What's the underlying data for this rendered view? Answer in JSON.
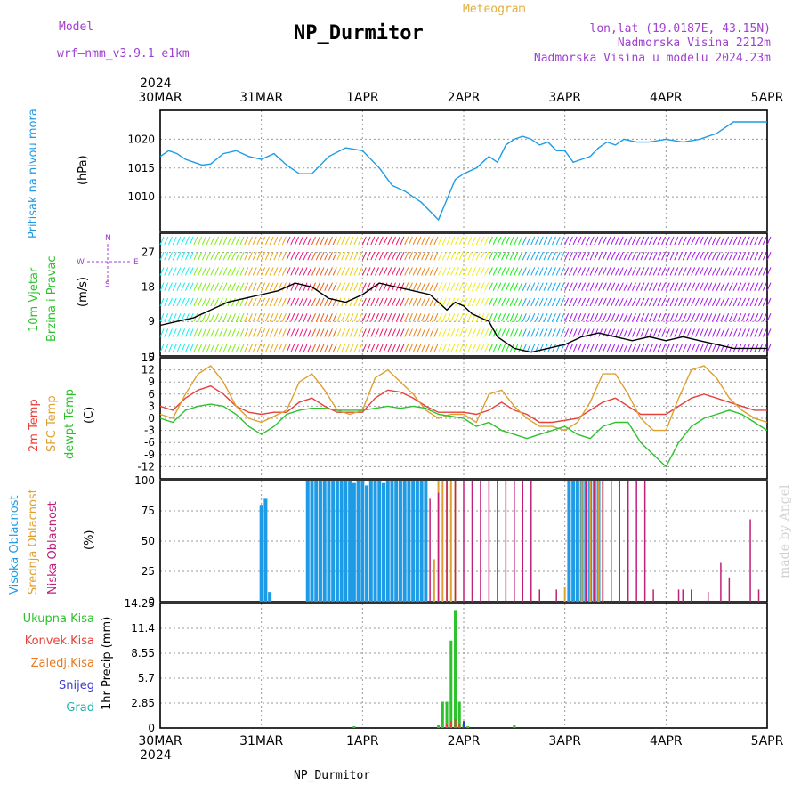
{
  "header": {
    "model_label": "Model",
    "model_name": "wrf—nmm_v3.9.1  e1km",
    "station_title": "NP_Durmitor",
    "meteogram_label": "Meteogram",
    "coords": "lon,lat (19.0187E, 43.15N)",
    "elevation": "Nadmorska Visina 2212m",
    "model_elevation": "Nadmorska Visina u modelu 2024.23m",
    "year_top": "2024",
    "year_bottom": "2024",
    "footer_station": "NP_Durmitor",
    "watermark": "made by Angel"
  },
  "colors": {
    "pressure": "#1e9be6",
    "temp2m": "#e8403a",
    "sfc": "#e0a030",
    "dewpt": "#2cc22c",
    "high_cloud": "#1e9be6",
    "mid_cloud": "#e0a030",
    "low_cloud": "#c0207a",
    "precip_total": "#2cc22c",
    "precip_conv": "#e8403a",
    "snow": "#3a3ad0",
    "header_purple": "#a040d0",
    "header_gold": "#e0b040"
  },
  "panel_labels": {
    "pressure": [
      "Pritisak na nivou mora",
      "(hPa)"
    ],
    "wind": [
      "10m Vjetar",
      "Brzina i Pravac",
      "(m/s)"
    ],
    "wind_compass": [
      "N",
      "S",
      "W",
      "E"
    ],
    "temp": [
      "2m Temp",
      "SFC Temp",
      "dewpt Temp",
      "(C)"
    ],
    "cloud": [
      "Visoka Oblacnost",
      "Srednja Oblacnost",
      "Niska Oblacnost",
      "(%)"
    ],
    "precip": [
      "Ukupna Kisa",
      "Konvek.Kisa",
      "Zaledj.Kisa",
      "Snijeg",
      "Grad",
      "1hr Precip (mm)"
    ]
  },
  "chart_data": [
    {
      "type": "line",
      "name_ref": "pressure",
      "x_labels": [
        "30MAR",
        "31MAR",
        "1APR",
        "2APR",
        "3APR",
        "4APR",
        "5APR"
      ],
      "yticks": [
        "1010",
        "1015",
        "1020"
      ],
      "ylim": [
        1004,
        1025
      ],
      "series": [
        {
          "color_ref": "pressure",
          "x": [
            0,
            2,
            4,
            6,
            8,
            10,
            12,
            15,
            18,
            21,
            24,
            27,
            30,
            33,
            36,
            40,
            44,
            48,
            52,
            55,
            58,
            62,
            66,
            70,
            72,
            75,
            78,
            80,
            82,
            84,
            86,
            88,
            90,
            92,
            94,
            96,
            98,
            100,
            102,
            104,
            106,
            108,
            110,
            113,
            116,
            120,
            124,
            128,
            132,
            136,
            140,
            144
          ],
          "values": [
            1017,
            1018,
            1017.5,
            1016.5,
            1016,
            1015.5,
            1015.7,
            1017.5,
            1018,
            1017,
            1016.5,
            1017.5,
            1015.5,
            1014,
            1014,
            1017,
            1018.5,
            1018,
            1015,
            1012,
            1011,
            1009,
            1006,
            1013,
            1014,
            1015,
            1017,
            1016,
            1019,
            1020,
            1020.5,
            1020,
            1019,
            1019.5,
            1018,
            1018,
            1016,
            1016.5,
            1017,
            1018.5,
            1019.5,
            1019,
            1020,
            1019.5,
            1019.5,
            1020,
            1019.5,
            1020,
            1021,
            1023,
            1023,
            1023
          ]
        }
      ]
    },
    {
      "type": "line",
      "name_ref": "wind",
      "yticks": [
        "0",
        "9",
        "18",
        "27"
      ],
      "ylim": [
        0,
        32
      ],
      "series": [
        {
          "color": "#000000",
          "x": [
            0,
            4,
            8,
            12,
            16,
            20,
            24,
            28,
            32,
            36,
            40,
            44,
            48,
            52,
            56,
            60,
            64,
            66,
            68,
            70,
            72,
            74,
            76,
            78,
            80,
            84,
            88,
            92,
            96,
            100,
            104,
            108,
            112,
            116,
            120,
            124,
            128,
            132,
            136,
            140,
            144
          ],
          "values": [
            8,
            9,
            10,
            12,
            14,
            15,
            16,
            17,
            19,
            18,
            15,
            14,
            16,
            19,
            18,
            17,
            16,
            14,
            12,
            14,
            13,
            11,
            10,
            9,
            5,
            2,
            1,
            2,
            3,
            5,
            6,
            5,
            4,
            5,
            4,
            5,
            4,
            3,
            2,
            2,
            2
          ]
        }
      ]
    },
    {
      "type": "line",
      "name_ref": "temp",
      "yticks": [
        "-12",
        "-9",
        "-6",
        "-3",
        "0",
        "3",
        "6",
        "9",
        "12",
        "15"
      ],
      "ylim": [
        -15,
        15
      ],
      "series": [
        {
          "color_ref": "temp2m",
          "x": [
            0,
            3,
            6,
            9,
            12,
            15,
            18,
            21,
            24,
            27,
            30,
            33,
            36,
            39,
            42,
            45,
            48,
            51,
            54,
            57,
            60,
            63,
            66,
            69,
            72,
            75,
            78,
            81,
            84,
            87,
            90,
            93,
            96,
            99,
            102,
            105,
            108,
            111,
            114,
            117,
            120,
            123,
            126,
            129,
            132,
            135,
            138,
            141,
            144
          ],
          "values": [
            3,
            2,
            5,
            7,
            8,
            6,
            3,
            1.5,
            1,
            1.5,
            1.5,
            4,
            5,
            3,
            1.5,
            1.5,
            1.5,
            5,
            7,
            6.5,
            5,
            3,
            1.5,
            1.5,
            1.5,
            1,
            2,
            4,
            2,
            1,
            -1,
            -1,
            -0.5,
            0,
            2,
            4,
            5,
            3,
            1,
            1,
            1,
            3,
            5,
            6,
            5,
            4,
            3,
            2,
            2
          ]
        },
        {
          "color_ref": "sfc",
          "x": [
            0,
            3,
            6,
            9,
            12,
            15,
            18,
            21,
            24,
            27,
            30,
            33,
            36,
            39,
            42,
            45,
            48,
            51,
            54,
            57,
            60,
            63,
            66,
            69,
            72,
            75,
            78,
            81,
            84,
            87,
            90,
            93,
            96,
            99,
            102,
            105,
            108,
            111,
            114,
            117,
            120,
            123,
            126,
            129,
            132,
            135,
            138,
            141,
            144
          ],
          "values": [
            1,
            0,
            6,
            11,
            13,
            9,
            3,
            0,
            -1,
            0.5,
            2,
            9,
            11,
            7,
            2,
            1,
            2,
            10,
            12,
            9,
            6,
            2,
            0,
            1,
            1,
            -1,
            6,
            7,
            3,
            0,
            -2,
            -2,
            -3,
            -1,
            4,
            11,
            11,
            6,
            0,
            -3,
            -3,
            5,
            12,
            13,
            10,
            5,
            2,
            0,
            -1
          ]
        },
        {
          "color_ref": "dewpt",
          "x": [
            0,
            3,
            6,
            9,
            12,
            15,
            18,
            21,
            24,
            27,
            30,
            33,
            36,
            39,
            42,
            45,
            48,
            51,
            54,
            57,
            60,
            63,
            66,
            69,
            72,
            75,
            78,
            81,
            84,
            87,
            90,
            93,
            96,
            99,
            102,
            105,
            108,
            111,
            114,
            117,
            120,
            123,
            126,
            129,
            132,
            135,
            138,
            141,
            144
          ],
          "values": [
            0,
            -1,
            2,
            3,
            3.5,
            3,
            1,
            -2,
            -4,
            -2,
            1,
            2,
            2.5,
            2.5,
            2,
            2,
            2,
            2.5,
            3,
            2.5,
            3,
            2.5,
            1,
            0.5,
            0,
            -2,
            -1,
            -3,
            -4,
            -5,
            -4,
            -3,
            -2,
            -4,
            -5,
            -2,
            -1,
            -1,
            -6,
            -9,
            -12,
            -6,
            -2,
            0,
            1,
            2,
            1,
            -1,
            -3
          ]
        }
      ]
    },
    {
      "type": "bar",
      "name_ref": "cloud",
      "yticks": [
        "0",
        "25",
        "50",
        "75",
        "100"
      ],
      "ylim": [
        0,
        100
      ],
      "high_cloud": {
        "x": [
          24,
          25,
          26,
          35,
          36,
          37,
          38,
          39,
          40,
          41,
          42,
          43,
          44,
          45,
          46,
          47,
          48,
          49,
          50,
          51,
          52,
          53,
          54,
          55,
          56,
          57,
          58,
          59,
          60,
          61,
          62,
          63,
          97,
          98,
          99,
          100,
          101,
          102,
          103,
          104
        ],
        "values": [
          80,
          85,
          8,
          100,
          100,
          100,
          100,
          100,
          100,
          100,
          100,
          100,
          100,
          100,
          98,
          100,
          100,
          96,
          100,
          100,
          100,
          98,
          100,
          100,
          100,
          100,
          100,
          100,
          100,
          100,
          100,
          100,
          100,
          100,
          100,
          100,
          100,
          100,
          100,
          100
        ]
      },
      "mid_cloud": {
        "x": [
          65,
          66,
          67,
          68,
          69,
          70,
          96,
          100,
          101,
          102,
          103,
          104,
          105
        ],
        "values": [
          35,
          100,
          100,
          100,
          100,
          100,
          12,
          100,
          100,
          100,
          100,
          100,
          100
        ]
      },
      "low_cloud": {
        "x": [
          64,
          66,
          68,
          70,
          72,
          74,
          76,
          78,
          80,
          82,
          84,
          86,
          88,
          90,
          94,
          101,
          103,
          105,
          107,
          109,
          111,
          113,
          115,
          117,
          123,
          124,
          126,
          130,
          133,
          135,
          140,
          142
        ],
        "values": [
          85,
          90,
          100,
          100,
          100,
          100,
          100,
          100,
          100,
          100,
          100,
          100,
          100,
          10,
          10,
          100,
          100,
          100,
          100,
          100,
          100,
          100,
          100,
          10,
          10,
          10,
          10,
          8,
          32,
          20,
          68,
          10
        ]
      }
    },
    {
      "type": "bar",
      "name_ref": "precip",
      "yticks": [
        "0",
        "2.85",
        "5.7",
        "8.55",
        "11.4",
        "14.25"
      ],
      "ylim": [
        0,
        14.25
      ],
      "total": {
        "x": [
          46,
          66,
          67,
          68,
          69,
          70,
          71,
          72,
          73,
          84
        ],
        "values": [
          0.2,
          0.3,
          3,
          3,
          10,
          13.5,
          3,
          0.4,
          0.2,
          0.3
        ]
      },
      "convective": {
        "x": [
          68,
          69,
          70,
          71
        ],
        "values": [
          0.5,
          0.8,
          1,
          0.4
        ]
      },
      "snow": {
        "x": [
          72
        ],
        "values": [
          0.8
        ]
      }
    }
  ]
}
